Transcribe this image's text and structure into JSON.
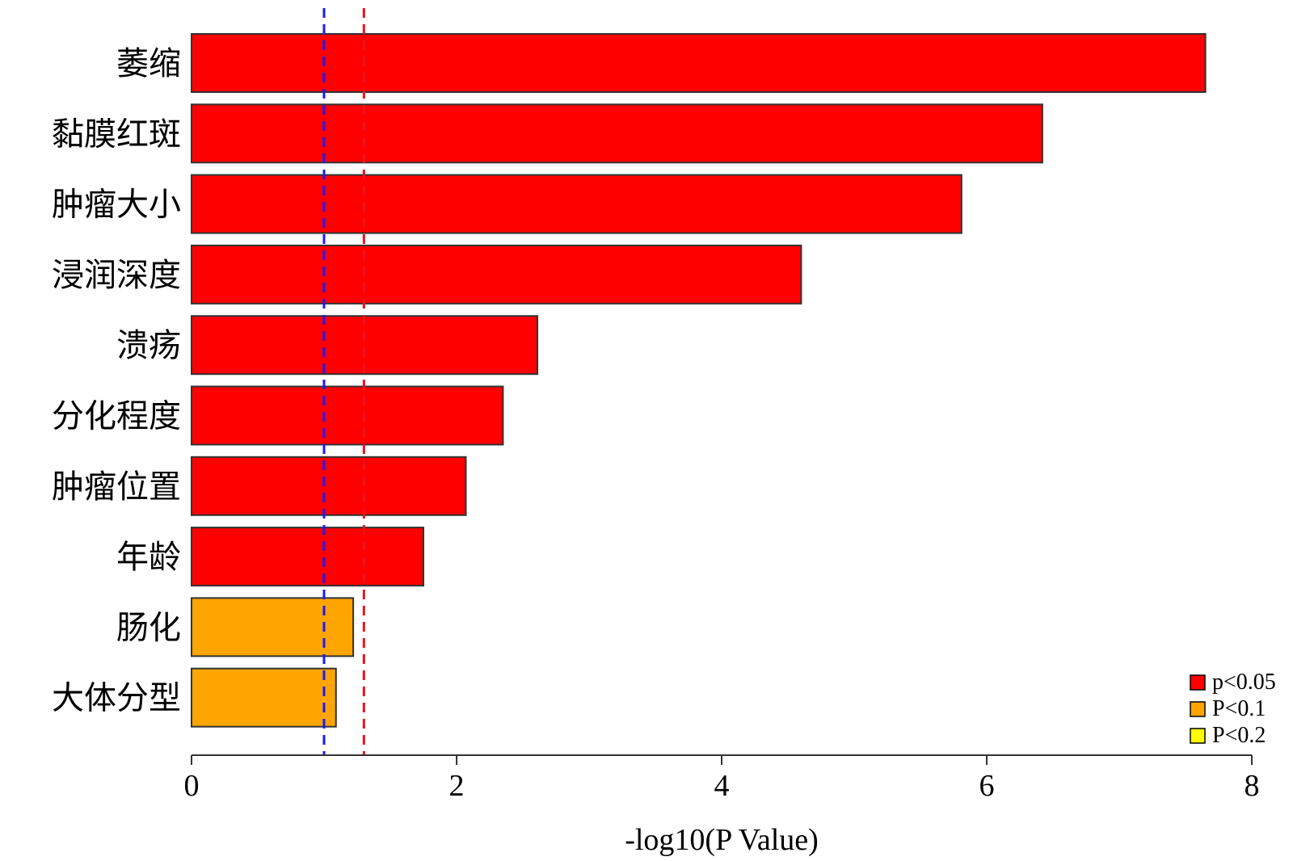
{
  "chart_data": {
    "type": "bar",
    "orientation": "horizontal",
    "categories": [
      "萎缩",
      "黏膜红斑",
      "肿瘤大小",
      "浸润深度",
      "溃疡",
      "分化程度",
      "肿瘤位置",
      "年龄",
      "肠化",
      "大体分型"
    ],
    "values": [
      7.65,
      6.42,
      5.81,
      4.6,
      2.61,
      2.35,
      2.07,
      1.75,
      1.22,
      1.09
    ],
    "groups": [
      "p<0.05",
      "p<0.05",
      "p<0.05",
      "p<0.05",
      "p<0.05",
      "p<0.05",
      "p<0.05",
      "p<0.05",
      "P<0.1",
      "P<0.1"
    ],
    "xlabel": "-log10(P Value)",
    "ylabel": "",
    "xlim": [
      0,
      8
    ],
    "xticks": [
      0,
      2,
      4,
      6,
      8
    ],
    "reference_lines": [
      {
        "value": 1.0,
        "color": "#1a1aff",
        "style": "dashed"
      },
      {
        "value": 1.301,
        "color": "#e8141e",
        "style": "dashed"
      }
    ],
    "legend": {
      "position": "bottom-right",
      "entries": [
        {
          "label": "p<0.05",
          "color": "#ff0000"
        },
        {
          "label": "P<0.1",
          "color": "#ffa500"
        },
        {
          "label": "P<0.2",
          "color": "#ffff00"
        }
      ]
    },
    "colors": {
      "p<0.05": "#ff0000",
      "P<0.1": "#ffa500",
      "P<0.2": "#ffff00"
    }
  }
}
